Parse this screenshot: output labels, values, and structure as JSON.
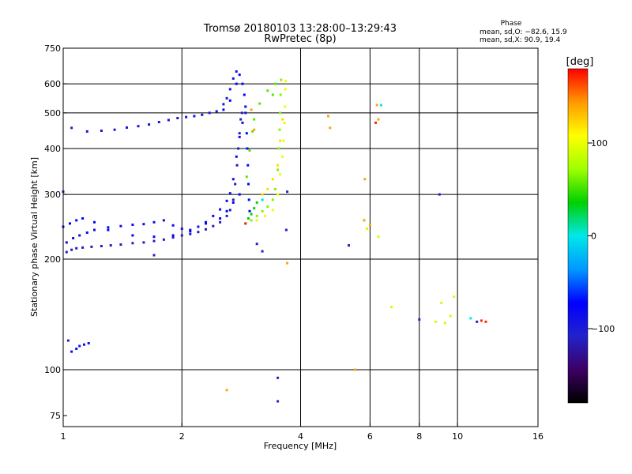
{
  "chart_data": {
    "type": "scatter",
    "title": "Tromsø 20180103 13:28:00–13:29:43",
    "subtitle": "RwPretec (8p)",
    "xlabel": "Frequency [MHz]",
    "ylabel": "Stationary phase Virtual Height [km]",
    "x_scale": "log2",
    "y_scale": "log",
    "xlim": [
      1,
      16
    ],
    "ylim": [
      70,
      750
    ],
    "x_ticks": [
      1,
      2,
      4,
      6,
      8,
      10,
      16
    ],
    "y_ticks": [
      75,
      100,
      200,
      300,
      400,
      500,
      600,
      750
    ],
    "x_grid": [
      2,
      4,
      6,
      8,
      10
    ],
    "y_grid": [
      100,
      200,
      300,
      400,
      500,
      600
    ],
    "stats": {
      "heading": "Phase",
      "line_o": "mean, sd,O: −82.6, 15.9",
      "line_x": "mean, sd,X:  90.9, 19.4"
    },
    "colorbar": {
      "label": "[deg]",
      "min": -180,
      "max": 180,
      "ticks": [
        {
          "value": 100,
          "label": "100"
        },
        {
          "value": 0,
          "label": "0"
        },
        {
          "value": -100,
          "label": "−100"
        }
      ],
      "colormap": [
        "#000000",
        "#3c0064",
        "#2222cc",
        "#0000ff",
        "#0099ff",
        "#00e8e8",
        "#00d000",
        "#a0ff00",
        "#ffff00",
        "#ff9900",
        "#ff0000"
      ]
    },
    "series": [
      {
        "phase": -115,
        "points": [
          [
            1.02,
            209
          ],
          [
            1.05,
            212
          ],
          [
            1.08,
            214
          ],
          [
            1.12,
            215
          ],
          [
            1.18,
            216
          ],
          [
            1.25,
            217
          ],
          [
            1.32,
            218
          ],
          [
            1.4,
            219
          ],
          [
            1.5,
            221
          ],
          [
            1.6,
            222
          ],
          [
            1.7,
            224
          ],
          [
            1.8,
            226
          ],
          [
            1.9,
            229
          ],
          [
            2.0,
            232
          ],
          [
            2.1,
            234
          ],
          [
            2.2,
            237
          ],
          [
            2.3,
            241
          ],
          [
            2.4,
            246
          ],
          [
            2.5,
            252
          ],
          [
            2.6,
            262
          ],
          [
            2.65,
            272
          ],
          [
            2.7,
            290
          ],
          [
            2.73,
            320
          ],
          [
            2.76,
            360
          ],
          [
            2.78,
            400
          ],
          [
            2.8,
            440
          ],
          [
            2.82,
            480
          ],
          [
            2.84,
            500
          ]
        ]
      },
      {
        "phase": -85,
        "points": [
          [
            1.02,
            222
          ],
          [
            1.06,
            228
          ],
          [
            1.1,
            232
          ],
          [
            1.15,
            236
          ],
          [
            1.2,
            240
          ],
          [
            1.3,
            244
          ],
          [
            1.4,
            246
          ],
          [
            1.5,
            248
          ],
          [
            1.6,
            249
          ],
          [
            1.7,
            252
          ],
          [
            1.8,
            255
          ],
          [
            1.9,
            247
          ],
          [
            2.0,
            242
          ],
          [
            2.1,
            240
          ],
          [
            2.2,
            245
          ],
          [
            2.3,
            252
          ],
          [
            2.4,
            262
          ],
          [
            2.5,
            273
          ],
          [
            2.6,
            288
          ],
          [
            2.65,
            302
          ],
          [
            2.7,
            330
          ],
          [
            2.75,
            380
          ],
          [
            2.8,
            430
          ],
          [
            2.85,
            470
          ],
          [
            2.9,
            500
          ]
        ]
      },
      {
        "phase": -95,
        "points": [
          [
            1.15,
            445
          ],
          [
            1.25,
            447
          ],
          [
            1.35,
            450
          ],
          [
            1.45,
            456
          ],
          [
            1.55,
            460
          ],
          [
            1.65,
            465
          ],
          [
            1.75,
            472
          ],
          [
            1.85,
            478
          ],
          [
            1.95,
            484
          ],
          [
            2.05,
            487
          ],
          [
            2.15,
            490
          ],
          [
            2.25,
            494
          ],
          [
            2.35,
            500
          ],
          [
            2.45,
            505
          ],
          [
            2.55,
            528
          ],
          [
            2.6,
            548
          ],
          [
            2.65,
            580
          ],
          [
            2.7,
            620
          ],
          [
            2.75,
            648
          ]
        ]
      },
      {
        "phase": -75,
        "points": [
          [
            1.0,
            245
          ],
          [
            1.04,
            250
          ],
          [
            1.08,
            255
          ],
          [
            1.12,
            258
          ],
          [
            1.2,
            252
          ],
          [
            1.3,
            240
          ],
          [
            1.5,
            232
          ],
          [
            1.7,
            230
          ],
          [
            1.9,
            232
          ],
          [
            2.1,
            238
          ],
          [
            2.3,
            250
          ],
          [
            2.5,
            258
          ],
          [
            2.6,
            270
          ],
          [
            2.7,
            285
          ],
          [
            2.8,
            300
          ]
        ]
      },
      {
        "phase": -70,
        "points": [
          [
            2.55,
            510
          ],
          [
            2.65,
            540
          ],
          [
            2.75,
            600
          ],
          [
            2.8,
            635
          ],
          [
            2.85,
            600
          ],
          [
            2.88,
            560
          ],
          [
            2.9,
            520
          ],
          [
            2.92,
            440
          ],
          [
            2.93,
            400
          ],
          [
            2.94,
            360
          ],
          [
            2.95,
            320
          ],
          [
            2.96,
            290
          ],
          [
            2.97,
            270
          ]
        ]
      },
      {
        "phase": 35,
        "points": [
          [
            2.9,
            250
          ],
          [
            2.95,
            258
          ],
          [
            3.0,
            265
          ],
          [
            3.05,
            275
          ],
          [
            3.1,
            285
          ],
          [
            3.2,
            290
          ]
        ]
      },
      {
        "phase": 65,
        "points": [
          [
            3.0,
            255
          ],
          [
            3.1,
            262
          ],
          [
            3.2,
            270
          ],
          [
            3.3,
            278
          ],
          [
            3.4,
            290
          ],
          [
            3.45,
            310
          ],
          [
            3.5,
            350
          ],
          [
            3.52,
            400
          ],
          [
            3.54,
            450
          ],
          [
            3.55,
            500
          ],
          [
            3.56,
            560
          ],
          [
            3.57,
            615
          ]
        ]
      },
      {
        "phase": 100,
        "points": [
          [
            3.1,
            255
          ],
          [
            3.25,
            262
          ],
          [
            3.4,
            272
          ],
          [
            3.5,
            300
          ],
          [
            3.55,
            340
          ],
          [
            3.6,
            380
          ],
          [
            3.62,
            420
          ],
          [
            3.64,
            470
          ],
          [
            3.65,
            520
          ],
          [
            3.66,
            580
          ],
          [
            3.67,
            610
          ]
        ]
      },
      {
        "phase": 120,
        "points": [
          [
            3.2,
            300
          ],
          [
            3.3,
            310
          ],
          [
            3.4,
            330
          ],
          [
            3.5,
            360
          ],
          [
            3.55,
            420
          ],
          [
            3.6,
            480
          ]
        ]
      },
      {
        "phase": 55,
        "points": [
          [
            2.92,
            335
          ],
          [
            2.97,
            395
          ],
          [
            3.02,
            445
          ],
          [
            3.05,
            480
          ],
          [
            3.15,
            530
          ],
          [
            3.3,
            575
          ],
          [
            3.4,
            560
          ],
          [
            3.45,
            600
          ]
        ]
      },
      {
        "phase": -90,
        "points": [
          [
            1.05,
            112
          ],
          [
            1.08,
            114
          ],
          [
            1.1,
            116
          ],
          [
            1.13,
            117
          ],
          [
            1.16,
            118
          ]
        ]
      },
      {
        "phase": 140,
        "points": [
          [
            3.0,
            510
          ],
          [
            3.05,
            450
          ],
          [
            5.8,
            255
          ],
          [
            5.82,
            330
          ],
          [
            6.3,
            480
          ],
          [
            6.25,
            525
          ],
          [
            4.7,
            490
          ],
          [
            4.75,
            455
          ],
          [
            3.7,
            195
          ],
          [
            5.5,
            100
          ],
          [
            2.6,
            88
          ],
          [
            6.0,
            248
          ]
        ]
      },
      {
        "phase": 90,
        "points": [
          [
            6.8,
            148
          ],
          [
            9.1,
            152
          ],
          [
            9.6,
            140
          ],
          [
            9.8,
            158
          ],
          [
            8.8,
            135
          ],
          [
            9.3,
            134
          ],
          [
            5.9,
            242
          ],
          [
            6.3,
            230
          ]
        ]
      },
      {
        "phase": -110,
        "points": [
          [
            3.7,
            305
          ],
          [
            3.68,
            240
          ],
          [
            3.5,
            95
          ],
          [
            3.5,
            82
          ],
          [
            3.1,
            220
          ],
          [
            5.3,
            218
          ],
          [
            3.2,
            210
          ],
          [
            9.0,
            300
          ],
          [
            8.0,
            137
          ],
          [
            11.2,
            135
          ],
          [
            1.7,
            205
          ],
          [
            1.03,
            120
          ],
          [
            1.0,
            305
          ],
          [
            1.05,
            455
          ]
        ]
      },
      {
        "phase": 0,
        "points": [
          [
            6.4,
            525
          ],
          [
            10.8,
            138
          ],
          [
            3.2,
            290
          ]
        ]
      },
      {
        "phase": 170,
        "points": [
          [
            11.5,
            136
          ],
          [
            11.8,
            135
          ],
          [
            6.2,
            470
          ],
          [
            2.9,
            250
          ]
        ]
      }
    ]
  }
}
